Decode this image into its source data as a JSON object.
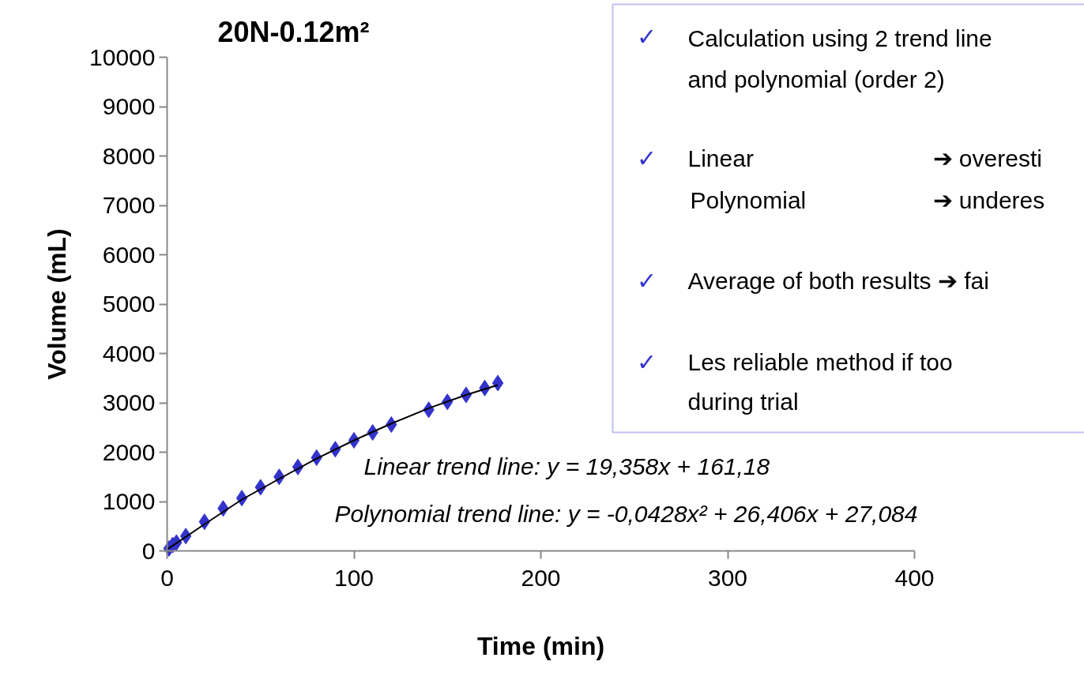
{
  "chart_data": {
    "type": "scatter",
    "title": "20N-0.12m²",
    "xlabel": "Time (min)",
    "ylabel": "Volume (mL)",
    "xlim": [
      0,
      400
    ],
    "xticks": [
      0,
      100,
      200,
      300,
      400
    ],
    "ylim": [
      0,
      10000
    ],
    "yticks": [
      0,
      1000,
      2000,
      3000,
      4000,
      5000,
      6000,
      7000,
      8000,
      9000,
      10000
    ],
    "grid": false,
    "series": [
      {
        "marker": "diamond",
        "color": "#3333cc",
        "x": [
          1,
          3,
          5,
          10,
          20,
          30,
          40,
          50,
          60,
          70,
          80,
          90,
          100,
          110,
          120,
          140,
          150,
          160,
          170,
          177
        ],
        "values": [
          50,
          120,
          170,
          300,
          590,
          860,
          1070,
          1290,
          1500,
          1700,
          1890,
          2060,
          2240,
          2400,
          2560,
          2860,
          3020,
          3160,
          3300,
          3400
        ]
      },
      {
        "type": "line",
        "marker": "none",
        "color": "#000000",
        "x": [
          0,
          20,
          40,
          60,
          80,
          100,
          120,
          140,
          160,
          177
        ],
        "values": [
          30,
          540,
          1040,
          1460,
          1870,
          2240,
          2580,
          2890,
          3160,
          3360
        ]
      }
    ],
    "annotations": [
      "Linear trend line: y = 19,358x +  161,18",
      "Polynomial trend line: y = -0,0428x² + 26,406x + 27,084",
      "✓",
      "Calculation using 2 trend line",
      "and polynomial (order 2)",
      "✓",
      "Linear",
      "➔ overesti",
      "Polynomial",
      "➔ underes",
      "✓",
      "Average of both results ➔ fai",
      "✓",
      "Les reliable method if too",
      "during trial"
    ]
  }
}
